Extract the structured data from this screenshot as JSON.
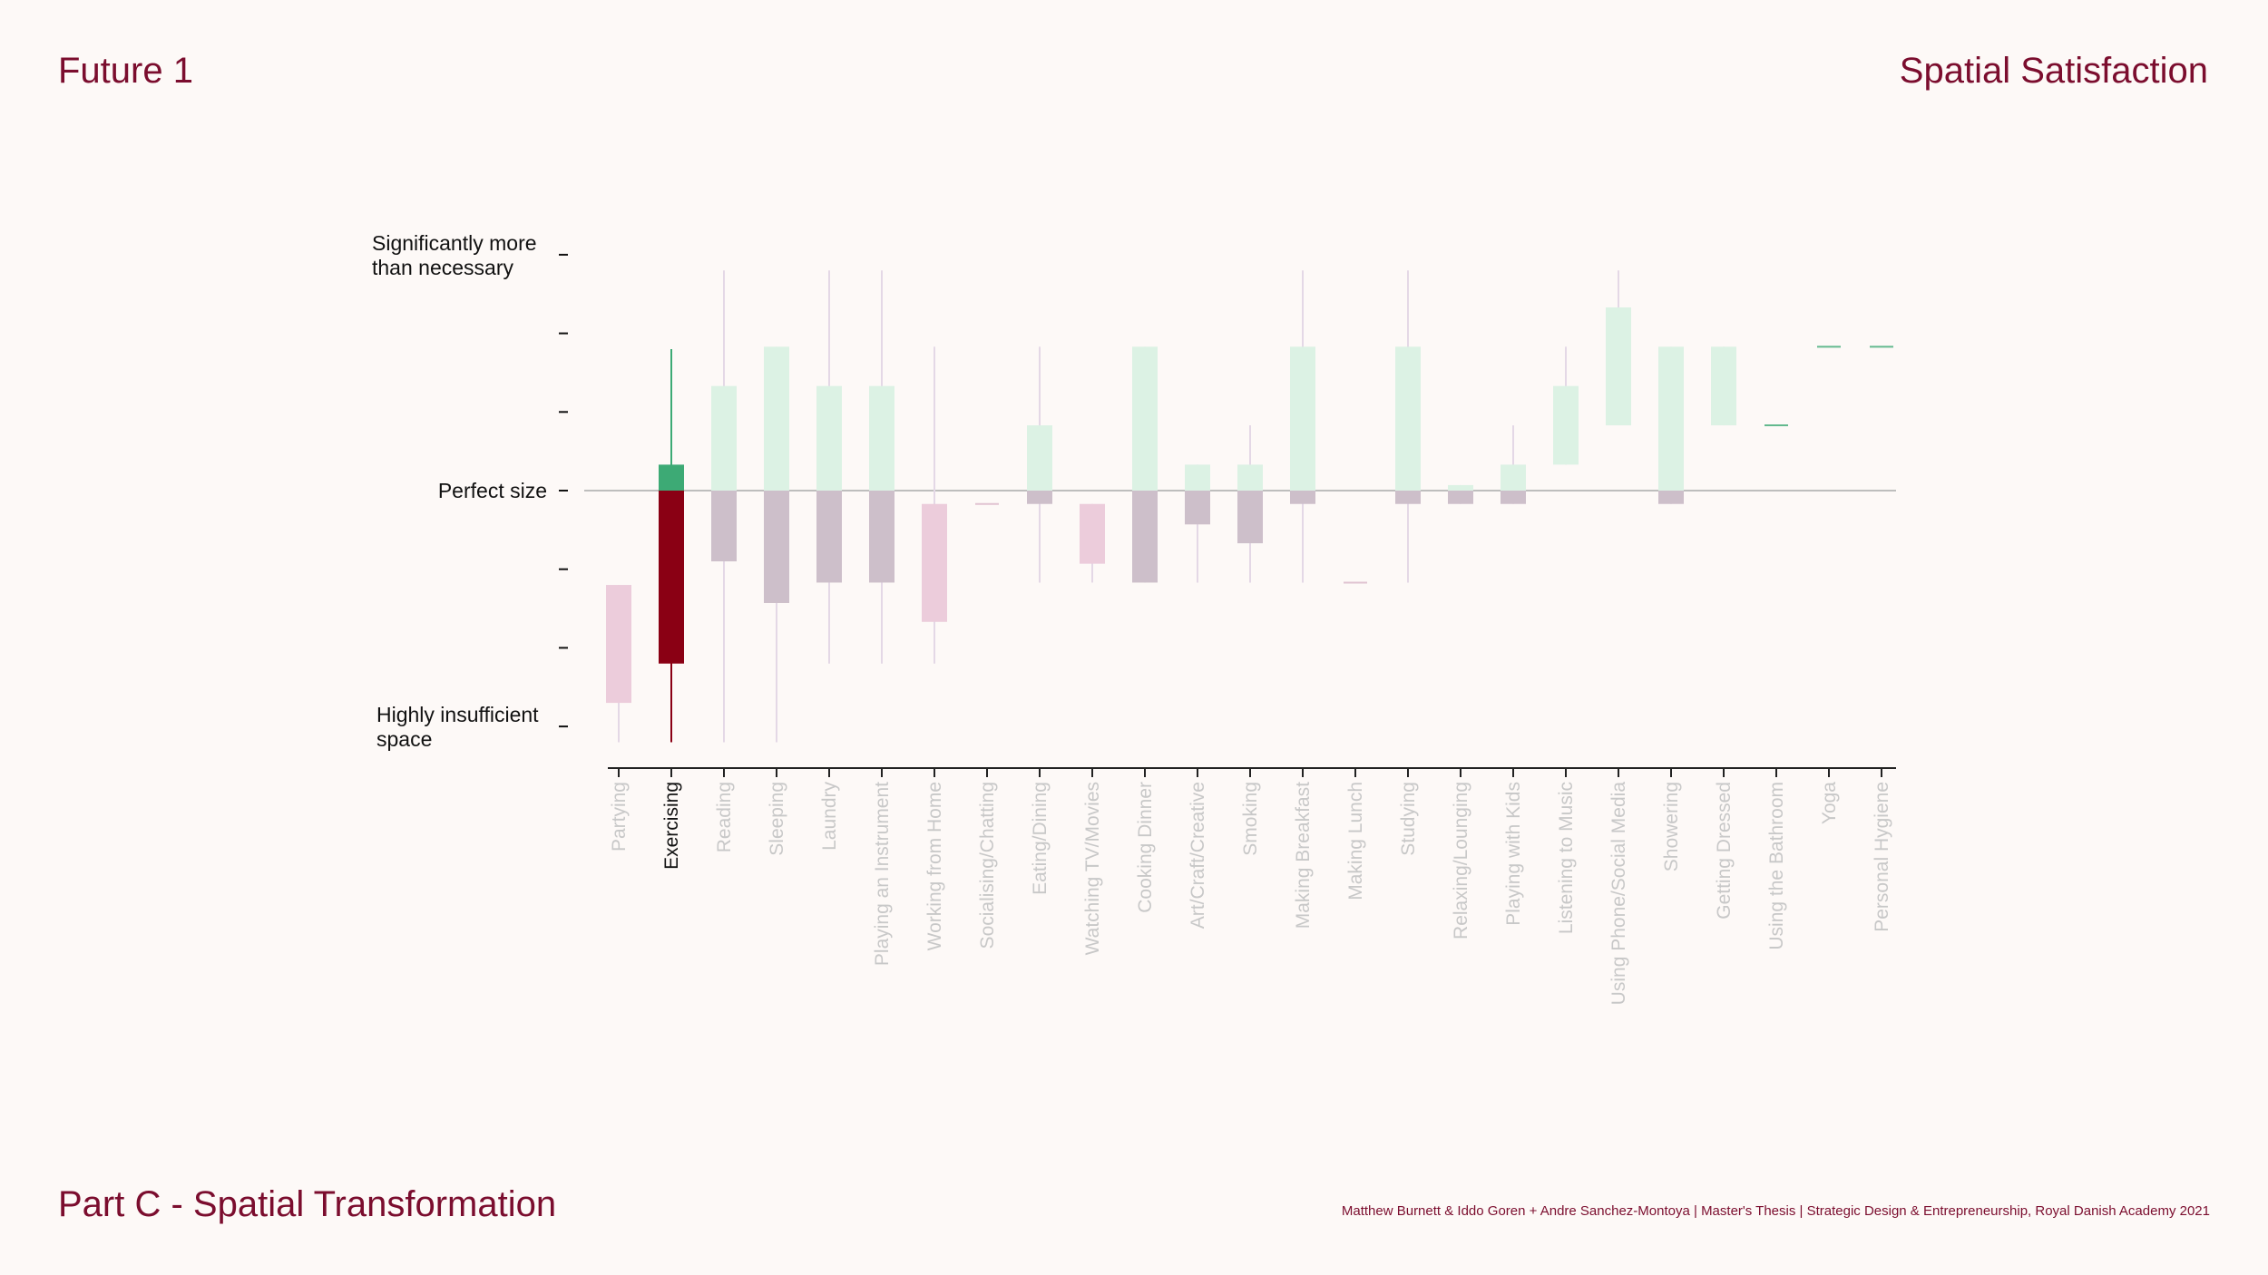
{
  "header": {
    "left_title": "Future 1",
    "right_title": "Spatial Satisfaction"
  },
  "footer": {
    "part_title": "Part C - Spatial Transformation",
    "credits": "Matthew Burnett & Iddo Goren +  Andre Sanchez-Montoya | Master's Thesis | Strategic Design & Entrepreneurship, Royal Danish Academy 2021"
  },
  "colors": {
    "accent": "#7b0d2e",
    "highlight_pos": "#3daa75",
    "highlight_neg": "#8a0014",
    "faded_pos": "#dcf2e4",
    "faded_neg": "#cdbfca",
    "faded_pink": "#ecccdb",
    "faded_whisker": "#e4d8e6",
    "faded_label": "#c8c8c8",
    "perfect_line": "#aaaaaa"
  },
  "chart_data": {
    "type": "box",
    "title": "Spatial Satisfaction",
    "ylim": [
      -3,
      3
    ],
    "y_tick_values": [
      3,
      2,
      1,
      0,
      -1,
      -2,
      -3
    ],
    "y_tick_labels": [
      {
        "value": 3,
        "label": [
          "Significantly more",
          "than necessary"
        ]
      },
      {
        "value": 2,
        "label": [
          ""
        ]
      },
      {
        "value": 1,
        "label": [
          ""
        ]
      },
      {
        "value": 0,
        "label": [
          "Perfect size"
        ]
      },
      {
        "value": -1,
        "label": [
          ""
        ]
      },
      {
        "value": -2,
        "label": [
          ""
        ]
      },
      {
        "value": -3,
        "label": [
          "Highly insufficient",
          "space"
        ]
      }
    ],
    "highlighted": "Exercising",
    "categories": [
      "Partying",
      "Exercising",
      "Reading",
      "Sleeping",
      "Laundry",
      "Playing an Instrument",
      "Working from Home",
      "Socialising/Chatting",
      "Eating/Dining",
      "Watching TV/Movies",
      "Cooking Dinner",
      "Art/Craft/Creative",
      "Smoking",
      "Making Breakfast",
      "Making Lunch",
      "Studying",
      "Relaxing/Lounging",
      "Playing with Kids",
      "Listening to Music",
      "Using Phone/Social Media",
      "Showering",
      "Getting Dressed",
      "Using the Bathroom",
      "Yoga",
      "Personal Hygiene"
    ],
    "series": [
      {
        "name": "Partying",
        "whisker": [
          -3.2,
          -1.2
        ],
        "box": [
          -2.7,
          -1.2
        ]
      },
      {
        "name": "Exercising",
        "whisker": [
          -3.2,
          1.8
        ],
        "box": [
          -2.2,
          0.33
        ]
      },
      {
        "name": "Reading",
        "whisker": [
          -3.2,
          2.8
        ],
        "box": [
          -0.9,
          1.33
        ]
      },
      {
        "name": "Sleeping",
        "whisker": [
          -3.2,
          1.83
        ],
        "box": [
          -1.43,
          1.83
        ]
      },
      {
        "name": "Laundry",
        "whisker": [
          -2.2,
          2.8
        ],
        "box": [
          -1.17,
          1.33
        ]
      },
      {
        "name": "Playing an Instrument",
        "whisker": [
          -2.2,
          2.8
        ],
        "box": [
          -1.17,
          1.33
        ]
      },
      {
        "name": "Working from Home",
        "whisker": [
          -2.2,
          1.83
        ],
        "box": [
          -1.67,
          -0.17
        ]
      },
      {
        "name": "Socialising/Chatting",
        "whisker": [
          -0.17,
          -0.17
        ],
        "box": [
          -0.17,
          -0.17
        ]
      },
      {
        "name": "Eating/Dining",
        "whisker": [
          -1.17,
          1.83
        ],
        "box": [
          -0.17,
          0.83
        ]
      },
      {
        "name": "Watching TV/Movies",
        "whisker": [
          -1.17,
          -0.17
        ],
        "box": [
          -0.93,
          -0.17
        ]
      },
      {
        "name": "Cooking Dinner",
        "whisker": [
          -1.17,
          1.83
        ],
        "box": [
          -1.17,
          1.83
        ]
      },
      {
        "name": "Art/Craft/Creative",
        "whisker": [
          -1.17,
          0.33
        ],
        "box": [
          -0.43,
          0.33
        ]
      },
      {
        "name": "Smoking",
        "whisker": [
          -1.17,
          0.83
        ],
        "box": [
          -0.67,
          0.33
        ]
      },
      {
        "name": "Making Breakfast",
        "whisker": [
          -1.17,
          2.8
        ],
        "box": [
          -0.17,
          1.83
        ]
      },
      {
        "name": "Making Lunch",
        "whisker": [
          -1.17,
          -1.17
        ],
        "box": [
          -1.17,
          -1.17
        ]
      },
      {
        "name": "Studying",
        "whisker": [
          -1.17,
          2.8
        ],
        "box": [
          -0.17,
          1.83
        ]
      },
      {
        "name": "Relaxing/Lounging",
        "whisker": [
          -0.17,
          0.07
        ],
        "box": [
          -0.17,
          0.07
        ]
      },
      {
        "name": "Playing with Kids",
        "whisker": [
          -0.17,
          0.83
        ],
        "box": [
          -0.17,
          0.33
        ]
      },
      {
        "name": "Listening to Music",
        "whisker": [
          0.33,
          1.83
        ],
        "box": [
          0.33,
          1.33
        ]
      },
      {
        "name": "Using Phone/Social Media",
        "whisker": [
          0.83,
          2.8
        ],
        "box": [
          0.83,
          2.33
        ]
      },
      {
        "name": "Showering",
        "whisker": [
          -0.17,
          1.83
        ],
        "box": [
          -0.17,
          1.83
        ]
      },
      {
        "name": "Getting Dressed",
        "whisker": [
          0.83,
          1.83
        ],
        "box": [
          0.83,
          1.83
        ]
      },
      {
        "name": "Using the Bathroom",
        "whisker": [
          0.83,
          0.83
        ],
        "box": [
          0.83,
          0.83
        ]
      },
      {
        "name": "Yoga",
        "whisker": [
          1.83,
          1.83
        ],
        "box": [
          1.83,
          1.83
        ]
      },
      {
        "name": "Personal Hygiene",
        "whisker": [
          1.83,
          1.83
        ],
        "box": [
          1.83,
          1.83
        ]
      }
    ]
  }
}
